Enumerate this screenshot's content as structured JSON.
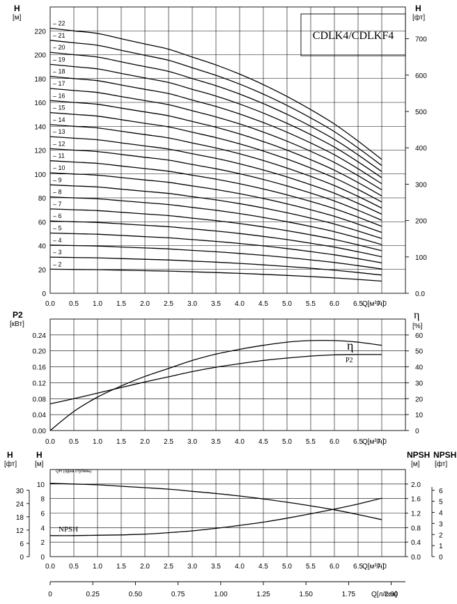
{
  "chart_data": [
    {
      "type": "line",
      "title": "CDLK4/CDLKF4",
      "y_axis_label": "H",
      "y_axis_unit": "[м]",
      "y2_axis_label": "H",
      "y2_axis_unit": "[фт]",
      "x_axis_label": "Q[м³/ч]",
      "xlim": [
        0,
        7.5
      ],
      "ylim": [
        0,
        240
      ],
      "y2lim": [
        0,
        787
      ],
      "x_ticks": [
        "0.0",
        "0.5",
        "1.0",
        "1.5",
        "2.0",
        "2.5",
        "3.0",
        "3.5",
        "4.0",
        "4.5",
        "5.0",
        "5.5",
        "6.0",
        "6.5",
        "7.0"
      ],
      "y_ticks": [
        "20",
        "40",
        "60",
        "80",
        "100",
        "120",
        "140",
        "160",
        "180",
        "200",
        "220"
      ],
      "y2_ticks": [
        "0.0",
        "100",
        "200",
        "300",
        "400",
        "500",
        "600",
        "700"
      ],
      "stage_labels": [
        "2",
        "3",
        "4",
        "5",
        "6",
        "7",
        "8",
        "9",
        "10",
        "11",
        "12",
        "13",
        "14",
        "15",
        "16",
        "17",
        "18",
        "19",
        "20",
        "21",
        "22"
      ],
      "x": [
        0,
        0.5,
        1.0,
        1.5,
        2.0,
        2.5,
        3.0,
        3.5,
        4.0,
        4.5,
        5.0,
        5.5,
        6.0,
        6.5,
        7.0
      ],
      "per_stage_head": [
        10.1,
        10.0,
        9.9,
        9.7,
        9.5,
        9.3,
        9.0,
        8.7,
        8.35,
        7.95,
        7.5,
        7.0,
        6.45,
        5.8,
        5.1
      ],
      "grid": true
    },
    {
      "type": "line",
      "y_axis_label": "P2",
      "y_axis_unit": "[кВт]",
      "y2_axis_label": "η",
      "y2_axis_unit": "[%]",
      "x_axis_label": "Q[м³/ч]",
      "xlim": [
        0,
        7.5
      ],
      "ylim": [
        0,
        0.28
      ],
      "y2lim": [
        0,
        70
      ],
      "x_ticks": [
        "0.0",
        "0.5",
        "1.0",
        "1.5",
        "2.0",
        "2.5",
        "3.0",
        "3.5",
        "4.0",
        "4.5",
        "5.0",
        "5.5",
        "6.0",
        "6.5",
        "7.0"
      ],
      "y_ticks": [
        "0.00",
        "0.04",
        "0.08",
        "0.12",
        "0.16",
        "0.20",
        "0.24"
      ],
      "y2_ticks": [
        "0",
        "10",
        "20",
        "30",
        "40",
        "50",
        "60"
      ],
      "x": [
        0,
        0.5,
        1.0,
        1.5,
        2.0,
        2.5,
        3.0,
        3.5,
        4.0,
        4.5,
        5.0,
        5.5,
        6.0,
        6.5,
        7.0
      ],
      "series": [
        {
          "name": "η",
          "axis": "right",
          "values": [
            0,
            12,
            21,
            28,
            34,
            39,
            44,
            48,
            51,
            53.5,
            55.5,
            56.5,
            56.5,
            55.5,
            53.5
          ]
        },
        {
          "name": "P2",
          "axis": "left",
          "values": [
            0.067,
            0.08,
            0.094,
            0.108,
            0.122,
            0.135,
            0.148,
            0.159,
            0.168,
            0.176,
            0.182,
            0.187,
            0.19,
            0.191,
            0.191
          ]
        }
      ],
      "grid": true
    },
    {
      "type": "line",
      "y_axis_label": "H",
      "y_axis_unit": "[м]",
      "y_axis2_label": "H",
      "y_axis2_unit": "[фт]",
      "y2_axis_label": "NPSH",
      "y2_axis_unit": "[м]",
      "y3_axis_label": "NPSH",
      "y3_axis_unit": "[фт]",
      "x_axis_label": "Q[м³/ч]",
      "x2_axis_label": "Q[л/сек]",
      "xlim": [
        0,
        7.5
      ],
      "ylim": [
        0,
        12
      ],
      "y2lim": [
        0,
        2.4
      ],
      "x_ticks": [
        "0.0",
        "0.5",
        "1.0",
        "1.5",
        "2.0",
        "2.5",
        "3.0",
        "3.5",
        "4.0",
        "4.5",
        "5.0",
        "5.5",
        "6.0",
        "6.5",
        "7.0"
      ],
      "x2_ticks": [
        "0",
        "0.25",
        "0.50",
        "0.75",
        "1.00",
        "1.25",
        "1.50",
        "1.75",
        "2.00"
      ],
      "y_ticks": [
        "0",
        "2",
        "4",
        "6",
        "8",
        "10"
      ],
      "y_ft_ticks": [
        "0",
        "6",
        "12",
        "18",
        "24",
        "30"
      ],
      "y2_ticks": [
        "0.0",
        "0.4",
        "0.8",
        "1.2",
        "1.6",
        "2.0"
      ],
      "y2_ft_ticks": [
        "0",
        "1",
        "2",
        "3",
        "4",
        "5",
        "6"
      ],
      "x": [
        0,
        0.5,
        1.0,
        1.5,
        2.0,
        2.5,
        3.0,
        3.5,
        4.0,
        4.5,
        5.0,
        5.5,
        6.0,
        6.5,
        7.0
      ],
      "series": [
        {
          "name": "QH (одна ступень)",
          "axis": "left",
          "values": [
            10.1,
            10.0,
            9.9,
            9.7,
            9.5,
            9.3,
            9.0,
            8.7,
            8.35,
            7.95,
            7.5,
            7.0,
            6.45,
            5.8,
            5.1
          ]
        },
        {
          "name": "NPSH",
          "axis": "right",
          "values": [
            0.58,
            0.58,
            0.59,
            0.6,
            0.62,
            0.66,
            0.71,
            0.78,
            0.86,
            0.95,
            1.06,
            1.18,
            1.31,
            1.45,
            1.61
          ]
        }
      ],
      "grid": true
    }
  ]
}
